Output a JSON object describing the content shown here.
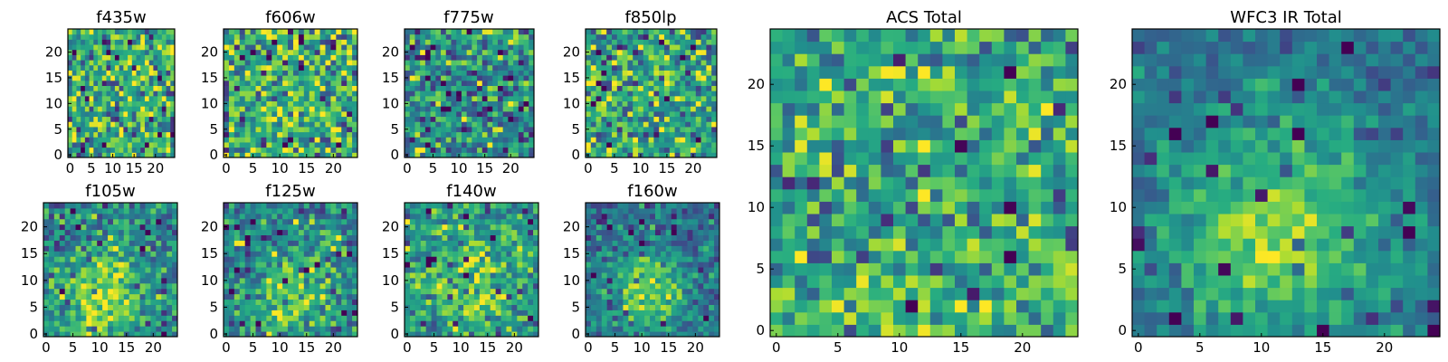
{
  "chart_data": [
    {
      "type": "heatmap",
      "title": "f435w",
      "xticks": [
        0,
        5,
        10,
        15,
        20
      ],
      "yticks": [
        0,
        5,
        10,
        15,
        20
      ],
      "xlim": [
        0,
        24
      ],
      "ylim": [
        0,
        24
      ],
      "grid": false,
      "colormap": "viridis",
      "pattern": "noise",
      "seed": 11,
      "center": [
        12,
        12
      ],
      "sigma": 6,
      "signal": 0.0,
      "base": 0.62,
      "noise": 0.22
    },
    {
      "type": "heatmap",
      "title": "f606w",
      "xticks": [
        0,
        5,
        10,
        15,
        20
      ],
      "yticks": [
        0,
        5,
        10,
        15,
        20
      ],
      "xlim": [
        0,
        24
      ],
      "ylim": [
        0,
        24
      ],
      "grid": false,
      "colormap": "viridis",
      "pattern": "noise",
      "seed": 23,
      "center": [
        12,
        12
      ],
      "sigma": 6,
      "signal": 0.0,
      "base": 0.64,
      "noise": 0.22
    },
    {
      "type": "heatmap",
      "title": "f775w",
      "xticks": [
        0,
        5,
        10,
        15,
        20
      ],
      "yticks": [
        0,
        5,
        10,
        15,
        20
      ],
      "xlim": [
        0,
        24
      ],
      "ylim": [
        0,
        24
      ],
      "grid": false,
      "colormap": "viridis",
      "pattern": "noise",
      "seed": 37,
      "center": [
        12,
        12
      ],
      "sigma": 6,
      "signal": 0.0,
      "base": 0.5,
      "noise": 0.22
    },
    {
      "type": "heatmap",
      "title": "f850lp",
      "xticks": [
        0,
        5,
        10,
        15,
        20
      ],
      "yticks": [
        0,
        5,
        10,
        15,
        20
      ],
      "xlim": [
        0,
        24
      ],
      "ylim": [
        0,
        24
      ],
      "grid": false,
      "colormap": "viridis",
      "pattern": "noise",
      "seed": 41,
      "center": [
        12,
        12
      ],
      "sigma": 6,
      "signal": 0.0,
      "base": 0.6,
      "noise": 0.22
    },
    {
      "type": "heatmap",
      "title": "ACS Total",
      "xticks": [
        0,
        5,
        10,
        15,
        20
      ],
      "yticks": [
        0,
        5,
        10,
        15,
        20
      ],
      "xlim": [
        0,
        24
      ],
      "ylim": [
        0,
        24
      ],
      "grid": false,
      "colormap": "viridis",
      "pattern": "noise",
      "seed": 53,
      "center": [
        12,
        12
      ],
      "sigma": 6,
      "signal": 0.0,
      "base": 0.62,
      "noise": 0.18
    },
    {
      "type": "heatmap",
      "title": "f105w",
      "xticks": [
        0,
        5,
        10,
        15,
        20
      ],
      "yticks": [
        0,
        5,
        10,
        15,
        20
      ],
      "xlim": [
        0,
        24
      ],
      "ylim": [
        0,
        24
      ],
      "grid": false,
      "colormap": "viridis",
      "pattern": "blob",
      "seed": 61,
      "center": [
        10,
        6
      ],
      "sigma": 6,
      "signal": 0.35,
      "base": 0.45,
      "noise": 0.18
    },
    {
      "type": "heatmap",
      "title": "f125w",
      "xticks": [
        0,
        5,
        10,
        15,
        20
      ],
      "yticks": [
        0,
        5,
        10,
        15,
        20
      ],
      "xlim": [
        0,
        24
      ],
      "ylim": [
        0,
        24
      ],
      "grid": false,
      "colormap": "viridis",
      "pattern": "blob",
      "seed": 71,
      "center": [
        13,
        7
      ],
      "sigma": 6,
      "signal": 0.32,
      "base": 0.45,
      "noise": 0.18
    },
    {
      "type": "heatmap",
      "title": "f140w",
      "xticks": [
        0,
        5,
        10,
        15,
        20
      ],
      "yticks": [
        0,
        5,
        10,
        15,
        20
      ],
      "xlim": [
        0,
        24
      ],
      "ylim": [
        0,
        24
      ],
      "grid": false,
      "colormap": "viridis",
      "pattern": "blob",
      "seed": 83,
      "center": [
        11,
        10
      ],
      "sigma": 7,
      "signal": 0.3,
      "base": 0.5,
      "noise": 0.17
    },
    {
      "type": "heatmap",
      "title": "f160w",
      "xticks": [
        0,
        5,
        10,
        15,
        20
      ],
      "yticks": [
        0,
        5,
        10,
        15,
        20
      ],
      "xlim": [
        0,
        24
      ],
      "ylim": [
        0,
        24
      ],
      "grid": false,
      "colormap": "viridis",
      "pattern": "blob",
      "seed": 97,
      "center": [
        11,
        8
      ],
      "sigma": 5,
      "signal": 0.45,
      "base": 0.38,
      "noise": 0.13
    },
    {
      "type": "heatmap",
      "title": "WFC3 IR Total",
      "xticks": [
        0,
        5,
        10,
        15,
        20
      ],
      "yticks": [
        0,
        5,
        10,
        15,
        20
      ],
      "xlim": [
        0,
        24
      ],
      "ylim": [
        0,
        24
      ],
      "grid": false,
      "colormap": "viridis",
      "pattern": "blob",
      "seed": 109,
      "center": [
        11,
        8
      ],
      "sigma": 6,
      "signal": 0.45,
      "base": 0.38,
      "noise": 0.1
    }
  ]
}
